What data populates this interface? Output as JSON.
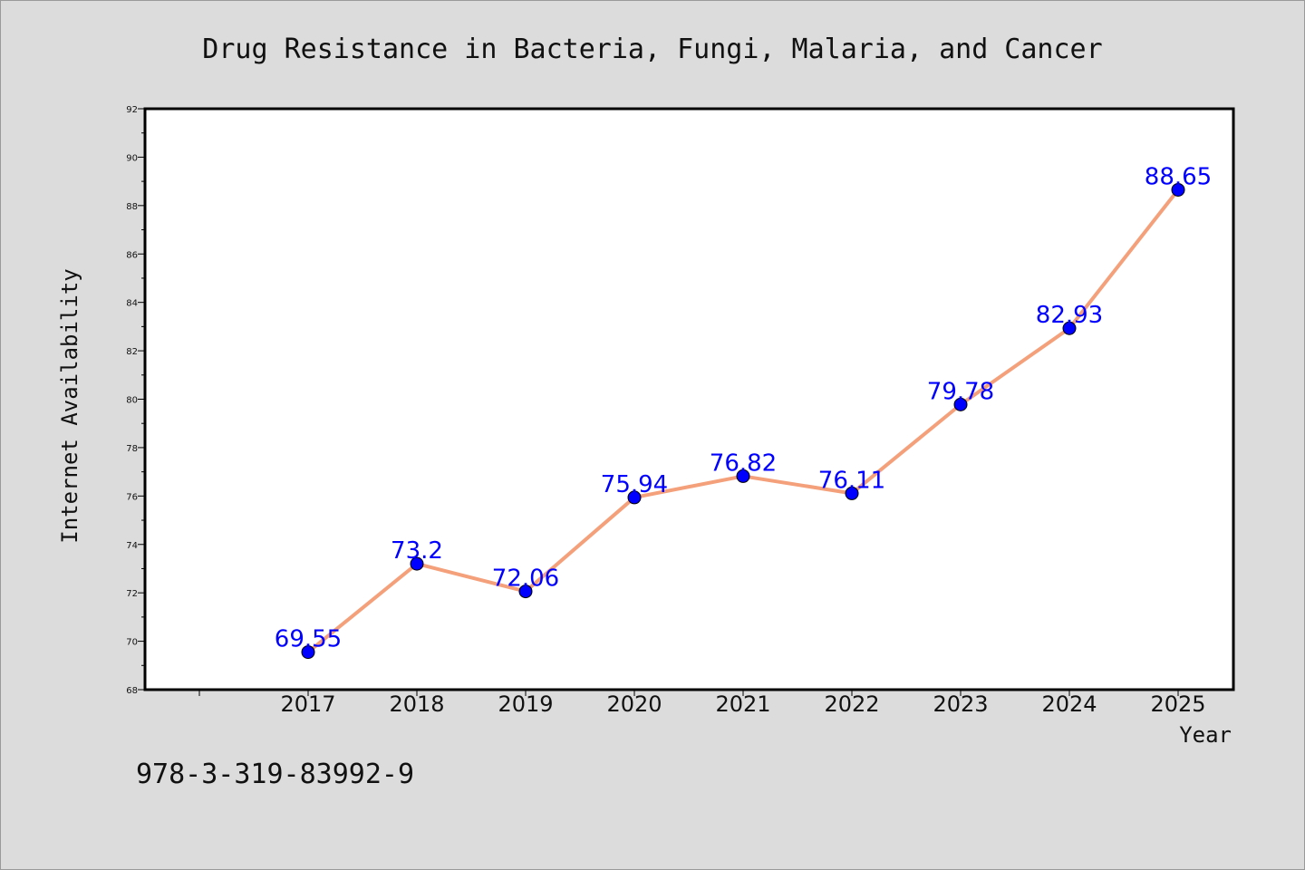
{
  "chart_data": {
    "type": "line",
    "title": "Drug Resistance in Bacteria, Fungi, Malaria, and Cancer",
    "xlabel": "Year",
    "ylabel": "Internet Availability",
    "categories": [
      "2017",
      "2018",
      "2019",
      "2020",
      "2021",
      "2022",
      "2023",
      "2024",
      "2025"
    ],
    "series": [
      {
        "values": [
          69.55,
          73.2,
          72.06,
          75.94,
          76.82,
          76.11,
          79.78,
          82.93,
          88.65
        ]
      }
    ],
    "data_labels": [
      "69.55",
      "73.2",
      "72.06",
      "75.94",
      "76.82",
      "76.11",
      "79.78",
      "82.93",
      "88.65"
    ],
    "ylim": [
      68,
      92
    ],
    "yticks": [
      68,
      70,
      72,
      74,
      76,
      78,
      80,
      82,
      84,
      86,
      88,
      90,
      92
    ],
    "grid": false,
    "legend": "none",
    "colors": {
      "line": "#f4a07a",
      "marker": "#0000ff",
      "label": "#0000ff",
      "background": "#dcdcdc",
      "plot_area": "#ffffff"
    }
  },
  "annotation": {
    "isbn": "978-3-319-83992-9"
  }
}
